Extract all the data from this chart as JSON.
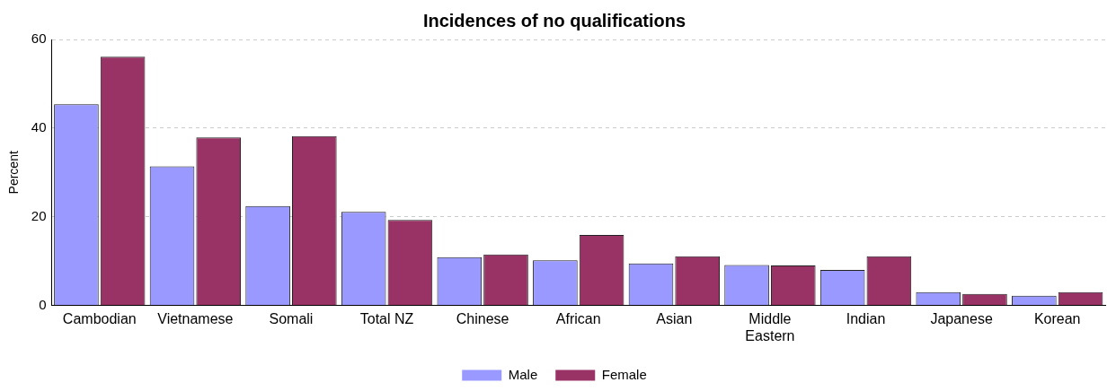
{
  "chart_data": {
    "type": "bar",
    "title": "Incidences of no qualifications",
    "ylabel": "Percent",
    "categories": [
      "Cambodian",
      "Vietnamese",
      "Somali",
      "Total NZ",
      "Chinese",
      "African",
      "Asian",
      "Middle Eastern",
      "Indian",
      "Japanese",
      "Korean"
    ],
    "series": [
      {
        "name": "Male",
        "color": "#9999ff",
        "values": [
          45.4,
          31.4,
          22.4,
          21.1,
          10.9,
          10.2,
          9.5,
          9.1,
          8.0,
          3.0,
          2.2
        ]
      },
      {
        "name": "Female",
        "color": "#993366",
        "values": [
          56.1,
          37.9,
          38.2,
          19.3,
          11.5,
          15.9,
          11.1,
          9.0,
          11.1,
          2.6,
          3.0
        ]
      }
    ],
    "ylim": [
      0,
      60
    ],
    "yticks": [
      0,
      20,
      40,
      60
    ],
    "grid": "y",
    "legend": "bottom"
  }
}
